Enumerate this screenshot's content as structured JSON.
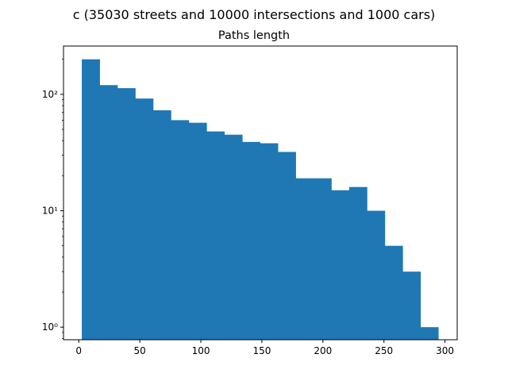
{
  "chart_data": {
    "type": "bar",
    "suptitle": "c (35030 streets and 10000 intersections and 1000 cars)",
    "title": "Paths length",
    "xlabel": "",
    "ylabel": "",
    "yscale": "log",
    "xlim": [
      -12.5,
      310
    ],
    "ylim": [
      0.78,
      260
    ],
    "xticks": [
      0,
      50,
      100,
      150,
      200,
      250,
      300
    ],
    "xtick_labels": [
      "0",
      "50",
      "100",
      "150",
      "200",
      "250",
      "300"
    ],
    "yticks": [
      1,
      10,
      100
    ],
    "ytick_labels": [
      "10⁰",
      "10¹",
      "10²"
    ],
    "bin_edges": [
      2.5,
      17.1,
      31.7,
      46.3,
      60.9,
      75.5,
      90.1,
      104.7,
      119.3,
      133.9,
      148.5,
      163.1,
      177.7,
      192.3,
      206.9,
      221.5,
      236.1,
      250.7,
      265.3,
      279.9,
      294.5
    ],
    "values": [
      200,
      120,
      113,
      92,
      73,
      60,
      57,
      48,
      45,
      39,
      38,
      32,
      19,
      19,
      15,
      16,
      10,
      5,
      3,
      1
    ],
    "bar_color": "#1f77b4",
    "grid": false
  }
}
